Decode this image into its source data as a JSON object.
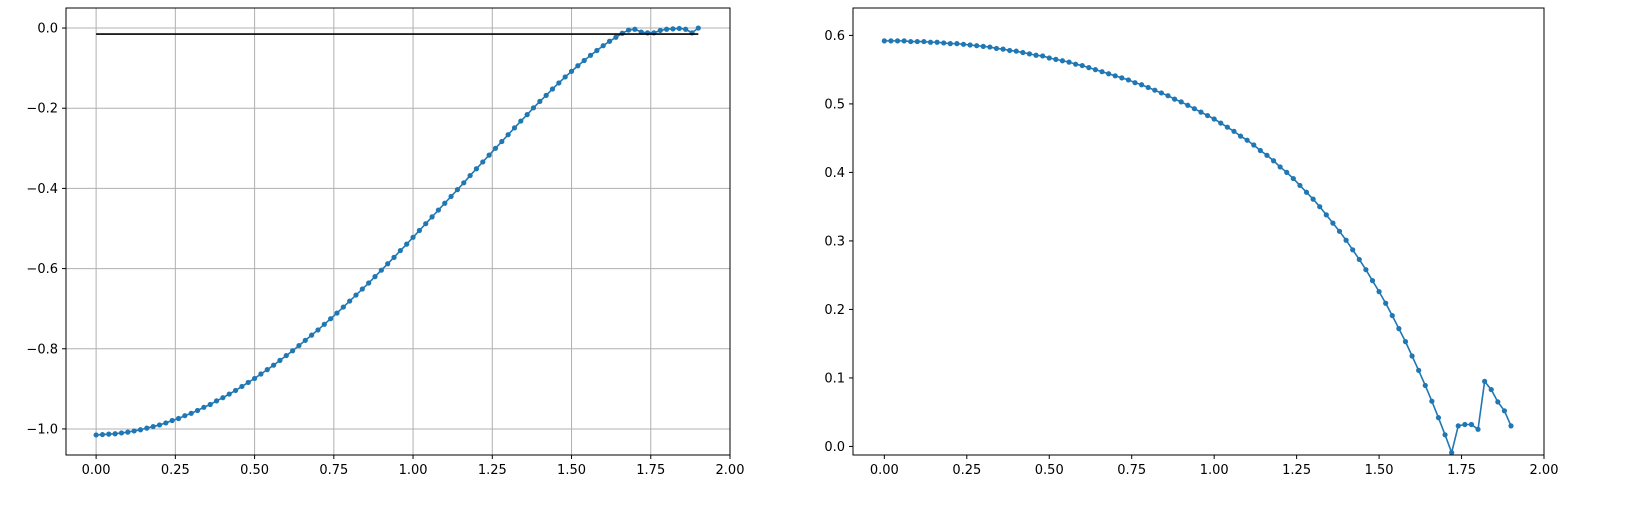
{
  "chart_data": [
    {
      "type": "line",
      "grid": true,
      "xlim": [
        -0.095,
        2.0
      ],
      "ylim": [
        -1.065,
        0.05
      ],
      "xticks": [
        "0.00",
        "0.25",
        "0.50",
        "0.75",
        "1.00",
        "1.25",
        "1.50",
        "1.75",
        "2.00"
      ],
      "yticks": [
        "0.0",
        "-0.2",
        "-0.4",
        "-0.6",
        "-0.8",
        "-1.0"
      ],
      "series": [
        {
          "color": "#1f77b4",
          "marker": "circle",
          "x": [
            0.0,
            0.02,
            0.04,
            0.06,
            0.08,
            0.1,
            0.12,
            0.14,
            0.16,
            0.18,
            0.2,
            0.22,
            0.24,
            0.26,
            0.28,
            0.3,
            0.32,
            0.34,
            0.36,
            0.38,
            0.4,
            0.42,
            0.44,
            0.46,
            0.48,
            0.5,
            0.52,
            0.54,
            0.56,
            0.58,
            0.6,
            0.62,
            0.64,
            0.66,
            0.68,
            0.7,
            0.72,
            0.74,
            0.76,
            0.78,
            0.8,
            0.82,
            0.84,
            0.86,
            0.88,
            0.9,
            0.92,
            0.94,
            0.96,
            0.98,
            1.0,
            1.02,
            1.04,
            1.06,
            1.08,
            1.1,
            1.12,
            1.14,
            1.16,
            1.18,
            1.2,
            1.22,
            1.24,
            1.26,
            1.28,
            1.3,
            1.32,
            1.34,
            1.36,
            1.38,
            1.4,
            1.42,
            1.44,
            1.46,
            1.48,
            1.5,
            1.52,
            1.54,
            1.56,
            1.58,
            1.6,
            1.62,
            1.64,
            1.66,
            1.68,
            1.7,
            1.72,
            1.74,
            1.76,
            1.78,
            1.8,
            1.82,
            1.84,
            1.86,
            1.88,
            1.9
          ],
          "y": [
            -1.015,
            -1.014,
            -1.013,
            -1.012,
            -1.01,
            -1.008,
            -1.005,
            -1.002,
            -0.998,
            -0.994,
            -0.99,
            -0.985,
            -0.979,
            -0.974,
            -0.967,
            -0.961,
            -0.954,
            -0.946,
            -0.939,
            -0.93,
            -0.922,
            -0.913,
            -0.904,
            -0.894,
            -0.884,
            -0.874,
            -0.863,
            -0.852,
            -0.841,
            -0.829,
            -0.817,
            -0.805,
            -0.792,
            -0.779,
            -0.766,
            -0.753,
            -0.739,
            -0.725,
            -0.711,
            -0.696,
            -0.681,
            -0.666,
            -0.651,
            -0.636,
            -0.62,
            -0.604,
            -0.588,
            -0.572,
            -0.555,
            -0.539,
            -0.522,
            -0.505,
            -0.488,
            -0.471,
            -0.454,
            -0.437,
            -0.42,
            -0.403,
            -0.386,
            -0.368,
            -0.351,
            -0.334,
            -0.317,
            -0.3,
            -0.283,
            -0.266,
            -0.249,
            -0.232,
            -0.216,
            -0.199,
            -0.183,
            -0.168,
            -0.152,
            -0.137,
            -0.122,
            -0.108,
            -0.094,
            -0.081,
            -0.068,
            -0.056,
            -0.044,
            -0.033,
            -0.023,
            -0.013,
            -0.005,
            -0.003,
            -0.01,
            -0.012,
            -0.012,
            -0.006,
            -0.003,
            -0.002,
            -0.001,
            -0.003,
            -0.012,
            0.0
          ]
        },
        {
          "color": "#000000",
          "marker": "none",
          "x": [
            0.0,
            1.9
          ],
          "y": [
            -0.015,
            -0.015
          ]
        }
      ]
    },
    {
      "type": "line",
      "grid": false,
      "xlim": [
        -0.095,
        2.0
      ],
      "ylim": [
        -0.0125,
        0.64
      ],
      "xticks": [
        "0.00",
        "0.25",
        "0.50",
        "0.75",
        "1.00",
        "1.25",
        "1.50",
        "1.75",
        "2.00"
      ],
      "yticks": [
        "0.0",
        "0.1",
        "0.2",
        "0.3",
        "0.4",
        "0.5",
        "0.6"
      ],
      "series": [
        {
          "color": "#1f77b4",
          "marker": "circle",
          "x": [
            0.0,
            0.02,
            0.04,
            0.06,
            0.08,
            0.1,
            0.12,
            0.14,
            0.16,
            0.18,
            0.2,
            0.22,
            0.24,
            0.26,
            0.28,
            0.3,
            0.32,
            0.34,
            0.36,
            0.38,
            0.4,
            0.42,
            0.44,
            0.46,
            0.48,
            0.5,
            0.52,
            0.54,
            0.56,
            0.58,
            0.6,
            0.62,
            0.64,
            0.66,
            0.68,
            0.7,
            0.72,
            0.74,
            0.76,
            0.78,
            0.8,
            0.82,
            0.84,
            0.86,
            0.88,
            0.9,
            0.92,
            0.94,
            0.96,
            0.98,
            1.0,
            1.02,
            1.04,
            1.06,
            1.08,
            1.1,
            1.12,
            1.14,
            1.16,
            1.18,
            1.2,
            1.22,
            1.24,
            1.26,
            1.28,
            1.3,
            1.32,
            1.34,
            1.36,
            1.38,
            1.4,
            1.42,
            1.44,
            1.46,
            1.48,
            1.5,
            1.52,
            1.54,
            1.56,
            1.58,
            1.6,
            1.62,
            1.64,
            1.66,
            1.68,
            1.7,
            1.72,
            1.74,
            1.76,
            1.78,
            1.8,
            1.82,
            1.84,
            1.86,
            1.88,
            1.9
          ],
          "y": [
            0.592,
            0.592,
            0.592,
            0.592,
            0.591,
            0.591,
            0.591,
            0.59,
            0.59,
            0.589,
            0.588,
            0.588,
            0.587,
            0.586,
            0.585,
            0.584,
            0.583,
            0.581,
            0.58,
            0.578,
            0.577,
            0.575,
            0.573,
            0.571,
            0.57,
            0.567,
            0.565,
            0.563,
            0.561,
            0.558,
            0.556,
            0.553,
            0.55,
            0.547,
            0.544,
            0.541,
            0.538,
            0.535,
            0.531,
            0.528,
            0.524,
            0.52,
            0.516,
            0.512,
            0.507,
            0.503,
            0.498,
            0.493,
            0.488,
            0.483,
            0.478,
            0.472,
            0.466,
            0.46,
            0.453,
            0.447,
            0.44,
            0.432,
            0.425,
            0.417,
            0.408,
            0.4,
            0.391,
            0.381,
            0.371,
            0.361,
            0.35,
            0.338,
            0.326,
            0.314,
            0.301,
            0.287,
            0.273,
            0.258,
            0.242,
            0.226,
            0.209,
            0.191,
            0.172,
            0.153,
            0.132,
            0.111,
            0.089,
            0.066,
            0.042,
            0.017,
            -0.009,
            0.03,
            0.032,
            0.032,
            0.025,
            0.095,
            0.083,
            0.065,
            0.052,
            0.03
          ]
        }
      ]
    }
  ]
}
